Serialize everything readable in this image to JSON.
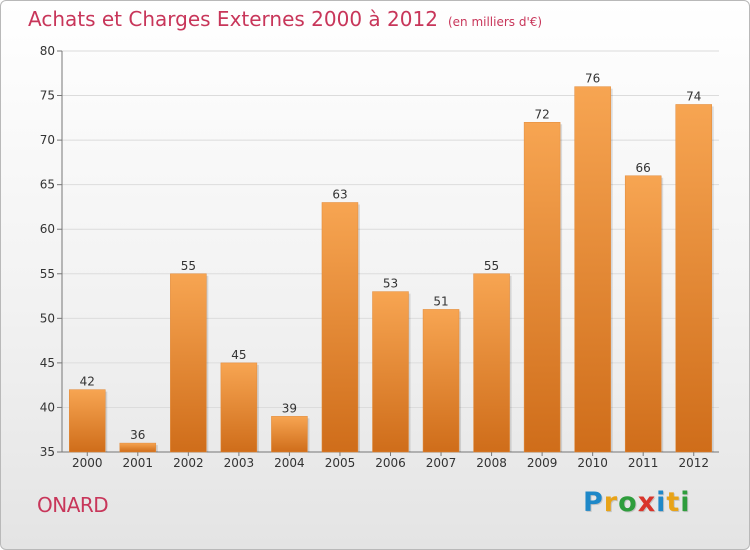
{
  "chart_data": {
    "type": "bar",
    "title": "Achats et Charges Externes 2000 à 2012",
    "subtitle": "(en milliers d'€)",
    "categories": [
      "2000",
      "2001",
      "2002",
      "2003",
      "2004",
      "2005",
      "2006",
      "2007",
      "2008",
      "2009",
      "2010",
      "2011",
      "2012"
    ],
    "values": [
      42,
      36,
      55,
      45,
      39,
      63,
      53,
      51,
      55,
      72,
      76,
      66,
      74
    ],
    "ylim": [
      35,
      80
    ],
    "yticks": [
      35,
      40,
      45,
      50,
      55,
      60,
      65,
      70,
      75,
      80
    ],
    "xlabel": "",
    "ylabel": "",
    "grid": true,
    "bar_color_top": "#f7a552",
    "bar_color_bottom": "#cf6d1a",
    "title_color": "#c8365a"
  },
  "footer": {
    "commune": "ONARD",
    "brand_letters": [
      {
        "ch": "P",
        "color": "#1e88c8"
      },
      {
        "ch": "r",
        "color": "#e8a317"
      },
      {
        "ch": "o",
        "color": "#2e9d3c"
      },
      {
        "ch": "x",
        "color": "#d9352b"
      },
      {
        "ch": "i",
        "color": "#1e88c8"
      },
      {
        "ch": "t",
        "color": "#e8a317"
      },
      {
        "ch": "i",
        "color": "#2e9d3c"
      }
    ]
  }
}
